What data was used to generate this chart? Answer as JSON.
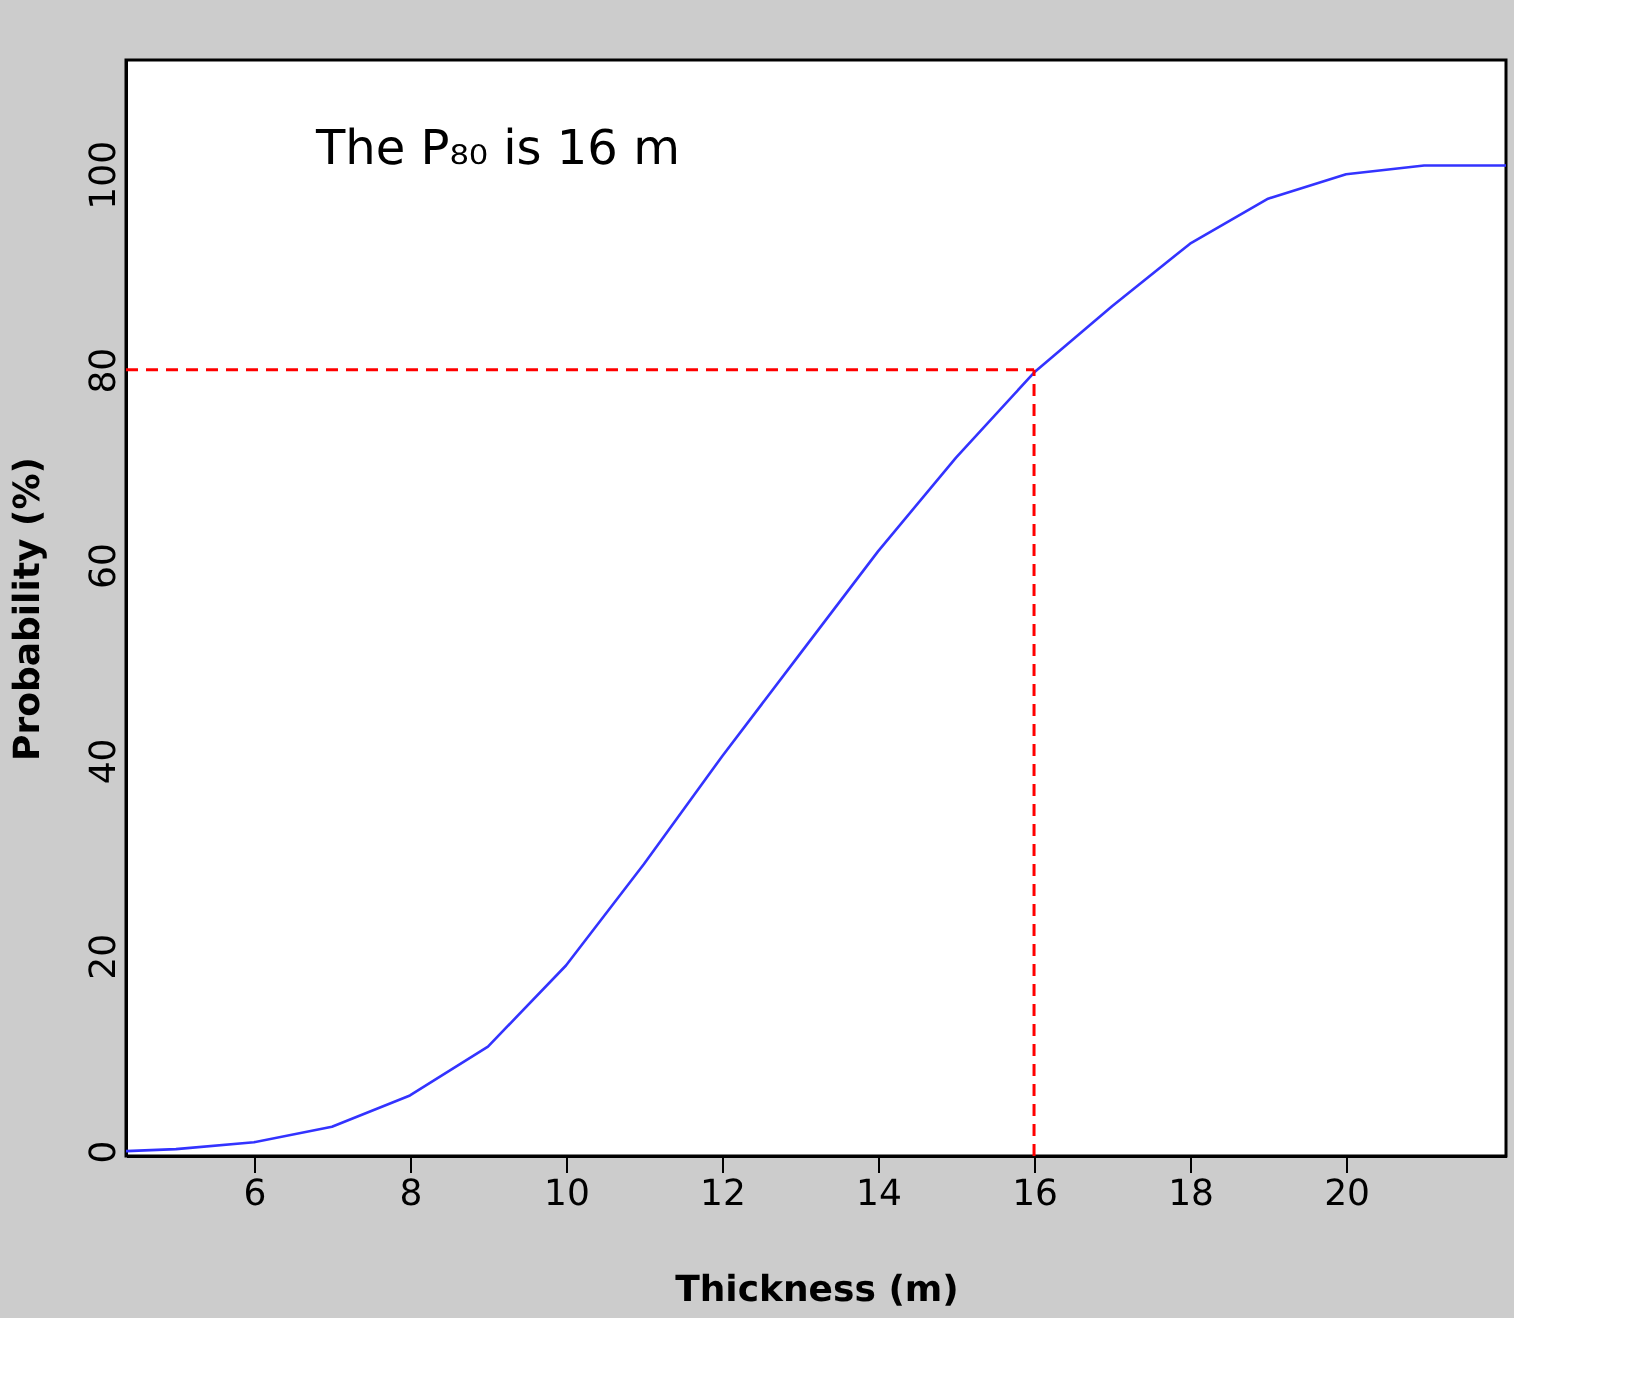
{
  "chart_data": {
    "type": "line",
    "xlabel": "Thickness (m)",
    "ylabel": "Probability (%)",
    "annotations": [
      "The P₈₀ is 16 m"
    ],
    "x": [
      4.36,
      5,
      6,
      7,
      8,
      9,
      10,
      11,
      12,
      13,
      14,
      15,
      16,
      17,
      18,
      19,
      20,
      21,
      22.05
    ],
    "series": [
      {
        "color": "#3333ff",
        "values": [
          0,
          0.2,
          0.9,
          2.5,
          5.7,
          10.7,
          19,
          29.4,
          40.4,
          50.9,
          61.4,
          71,
          79.7,
          86.5,
          92.9,
          97.5,
          100,
          100.9,
          100.9
        ]
      }
    ],
    "xlim": [
      4.36,
      22.05
    ],
    "xticks": [
      6,
      8,
      10,
      12,
      14,
      16,
      18,
      20
    ],
    "ylim": [
      -0.5,
      111.7
    ],
    "yticks": [
      0,
      20,
      40,
      60,
      80,
      100
    ],
    "ref_lines": [
      {
        "axis": "y",
        "value": 80,
        "color": "#ff0000",
        "line_style": "dashed"
      },
      {
        "axis": "x",
        "value": 16,
        "color": "#ff0000",
        "line_style": "dashed"
      }
    ],
    "grid": false,
    "marker": "none",
    "line_style": "solid"
  }
}
